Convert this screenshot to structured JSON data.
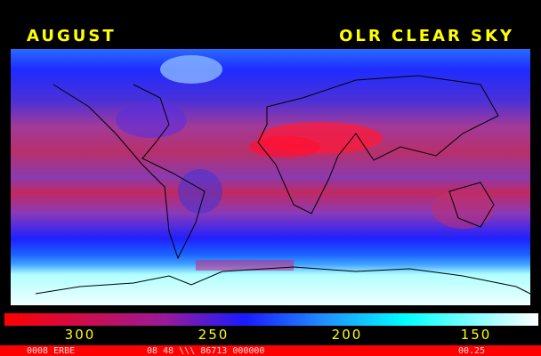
{
  "header": {
    "month": "AUGUST",
    "title": "OLR CLEAR SKY"
  },
  "legend": {
    "ticks": [
      "300",
      "250",
      "200",
      "150"
    ]
  },
  "footer": {
    "left": "0008 ERBE",
    "middle": "08 48 \\\\\\ 86713 000000",
    "right": "00.25"
  }
}
